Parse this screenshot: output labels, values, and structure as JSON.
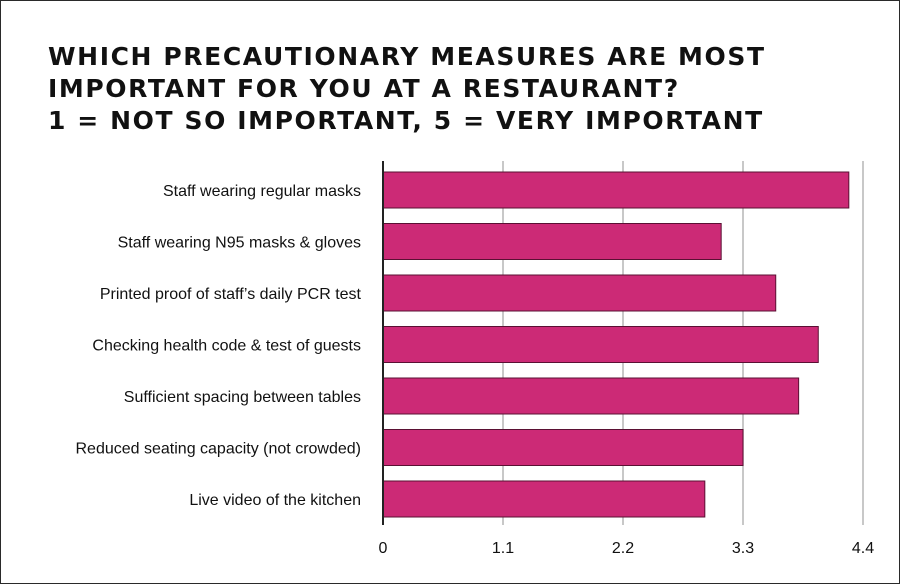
{
  "chart_data": {
    "type": "bar",
    "orientation": "horizontal",
    "title_lines": [
      "Which precautionary measures are most",
      "important for you at a restaurant?",
      "1 = Not so important, 5 = Very important"
    ],
    "categories": [
      "Staff wearing regular masks",
      "Staff wearing N95 masks & gloves",
      "Printed proof of staff’s daily PCR test",
      "Checking health code & test of guests",
      "Sufficient spacing between tables",
      "Reduced seating capacity (not crowded)",
      "Live video of the kitchen"
    ],
    "values": [
      4.27,
      3.1,
      3.6,
      3.99,
      3.81,
      3.3,
      2.95
    ],
    "xlim": [
      0,
      4.4
    ],
    "xticks": [
      "0",
      "1.1",
      "2.2",
      "3.3",
      "4.4"
    ],
    "xlabel": "",
    "ylabel": "",
    "grid": true,
    "bar_color": "#cc2a76",
    "bar_stroke": "#5a1033",
    "grid_color": "#b5b5b5"
  }
}
